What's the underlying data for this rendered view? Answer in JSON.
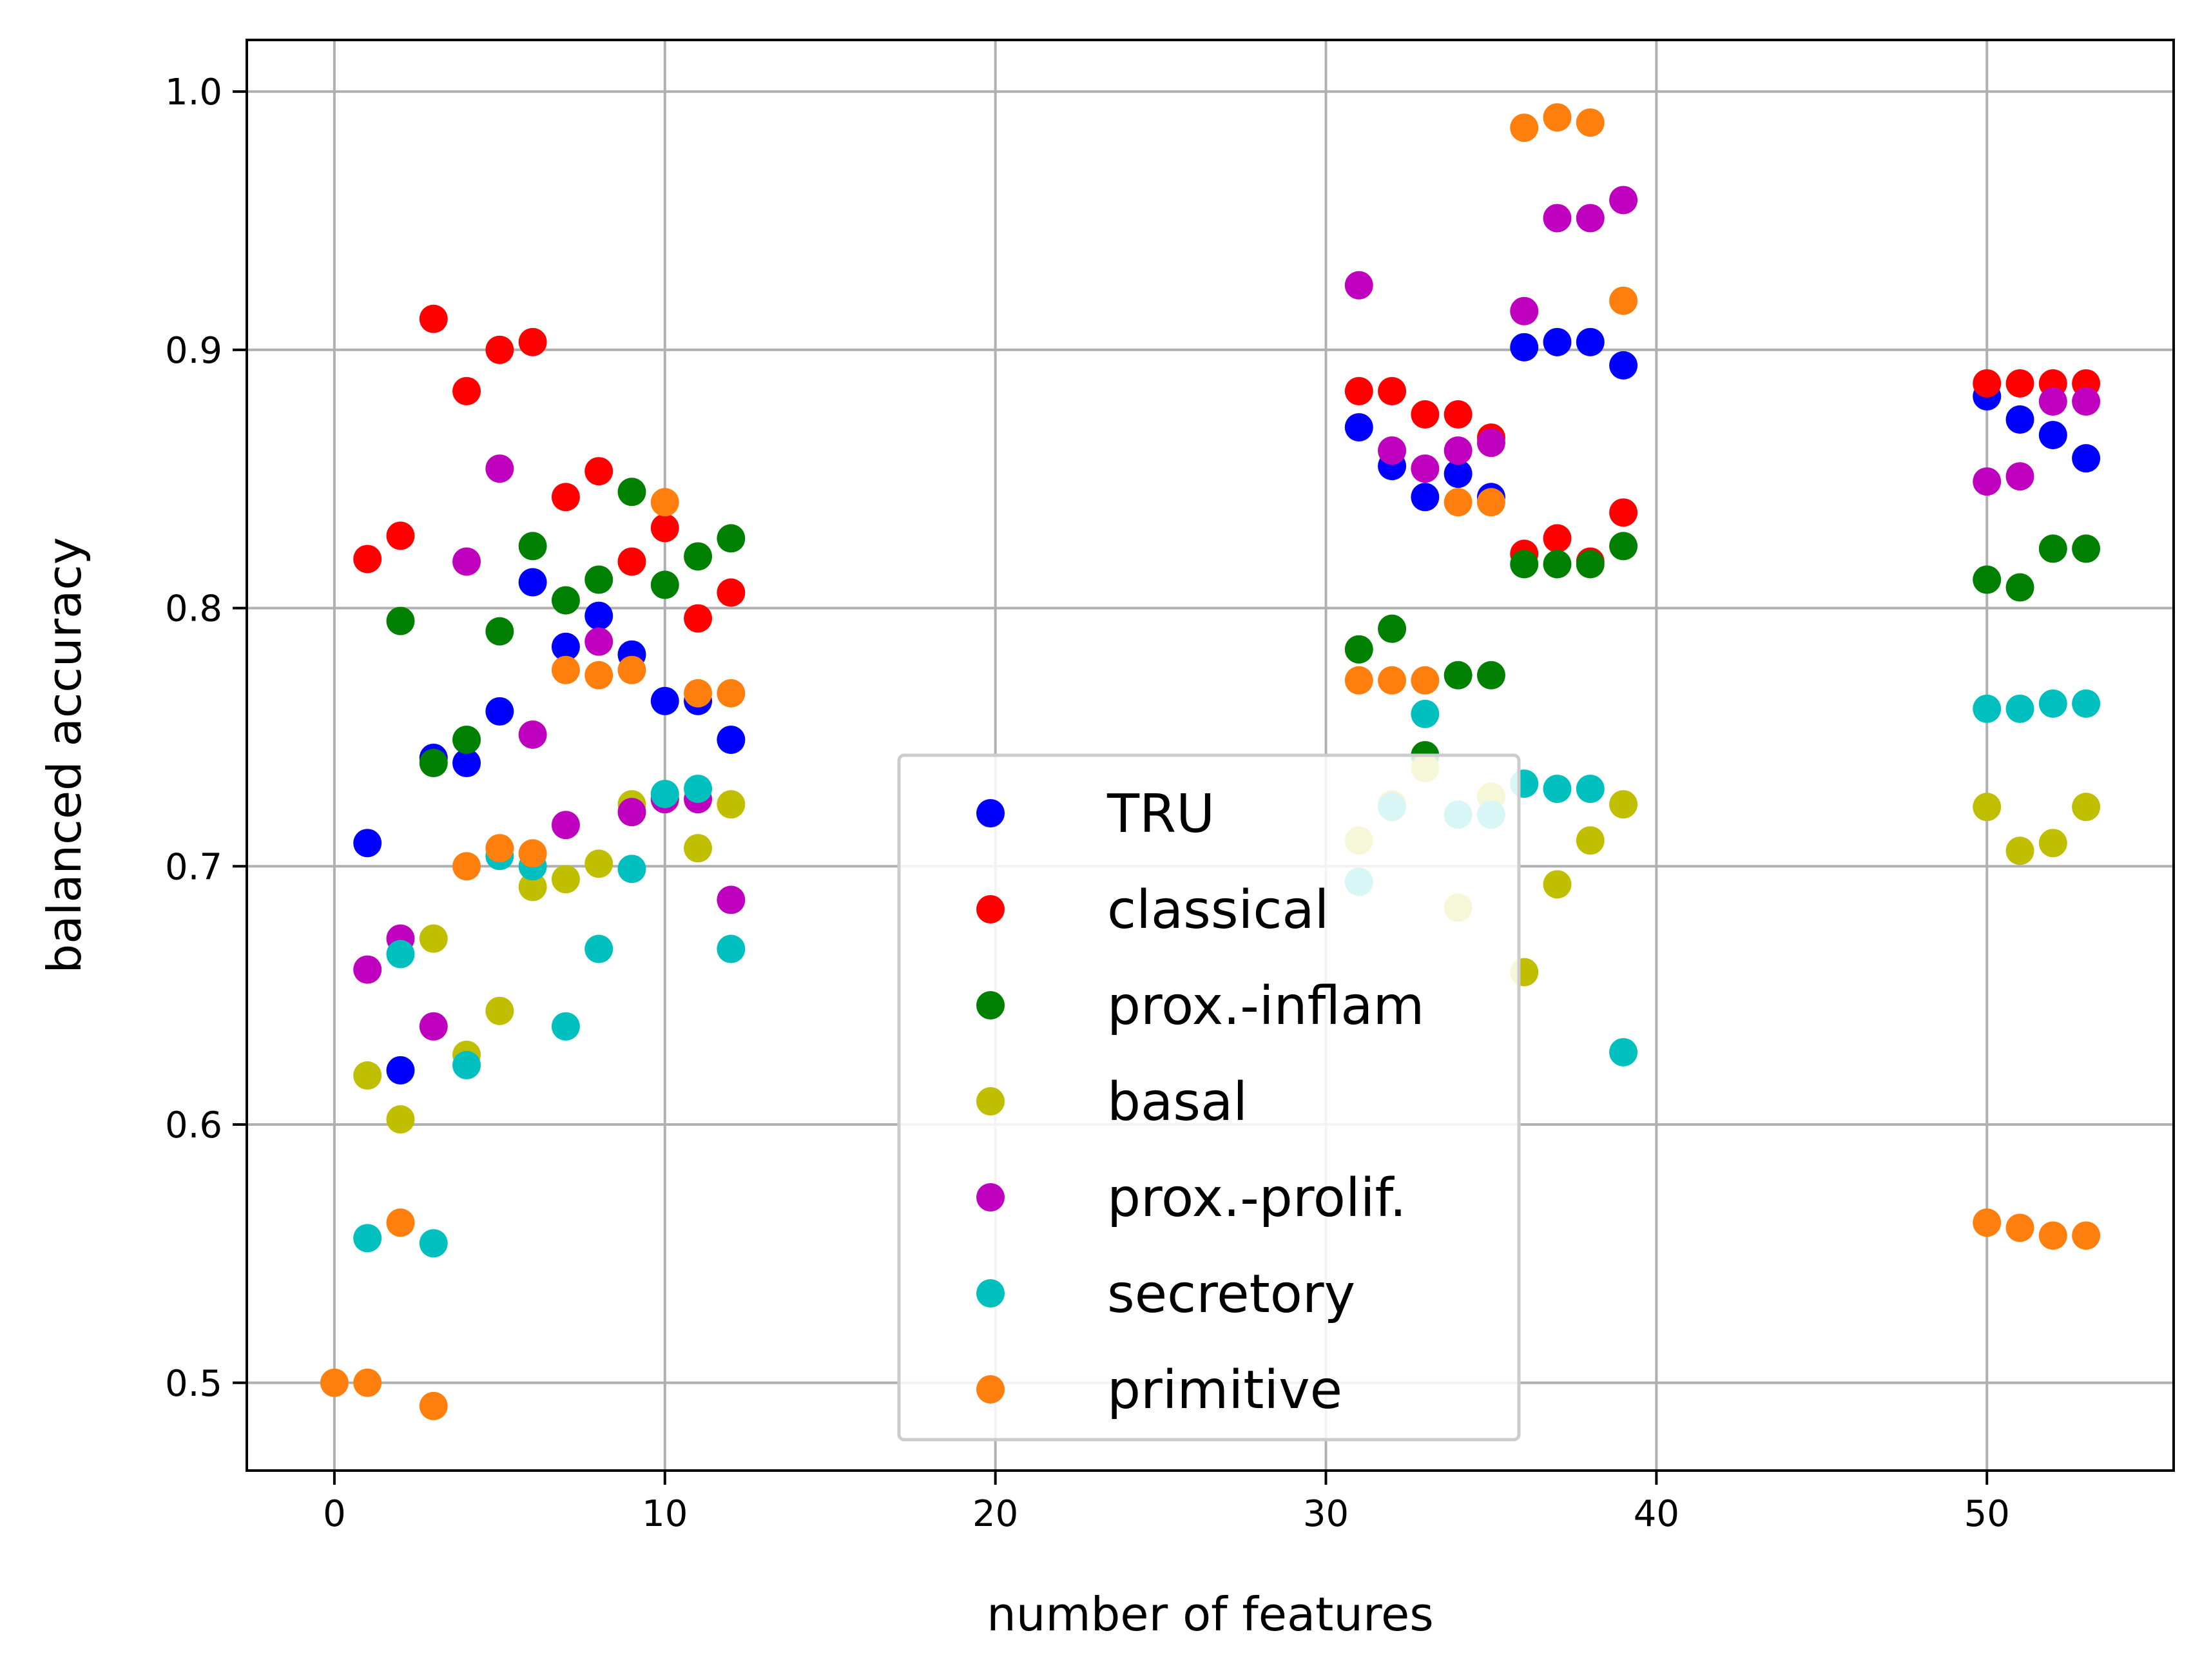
{
  "chart_data": {
    "type": "scatter",
    "title": "",
    "xlabel": "number of features",
    "ylabel": "balanced accuracy",
    "xlim": [
      -2.65,
      55.65
    ],
    "ylim": [
      0.466,
      1.02
    ],
    "xticks": [
      0,
      10,
      20,
      30,
      40,
      50
    ],
    "yticks": [
      0.5,
      0.6,
      0.7,
      0.8,
      0.9,
      1.0
    ],
    "xtick_labels": [
      "0",
      "10",
      "20",
      "30",
      "40",
      "50"
    ],
    "ytick_labels": [
      "0.5",
      "0.6",
      "0.7",
      "0.8",
      "0.9",
      "1.0"
    ],
    "grid": true,
    "legend_position": "lower center",
    "series": [
      {
        "name": "TRU",
        "color": "#0000ff",
        "points": [
          [
            1,
            0.709
          ],
          [
            2,
            0.621
          ],
          [
            3,
            0.742
          ],
          [
            4,
            0.74
          ],
          [
            5,
            0.76
          ],
          [
            6,
            0.81
          ],
          [
            7,
            0.785
          ],
          [
            8,
            0.797
          ],
          [
            9,
            0.782
          ],
          [
            10,
            0.764
          ],
          [
            11,
            0.764
          ],
          [
            12,
            0.749
          ],
          [
            31,
            0.87
          ],
          [
            32,
            0.855
          ],
          [
            33,
            0.843
          ],
          [
            34,
            0.852
          ],
          [
            35,
            0.843
          ],
          [
            36,
            0.901
          ],
          [
            37,
            0.903
          ],
          [
            38,
            0.903
          ],
          [
            39,
            0.894
          ],
          [
            50,
            0.882
          ],
          [
            51,
            0.873
          ],
          [
            52,
            0.867
          ],
          [
            53,
            0.858
          ]
        ]
      },
      {
        "name": "classical",
        "color": "#ff0000",
        "points": [
          [
            1,
            0.819
          ],
          [
            2,
            0.828
          ],
          [
            3,
            0.912
          ],
          [
            4,
            0.884
          ],
          [
            5,
            0.9
          ],
          [
            6,
            0.903
          ],
          [
            7,
            0.843
          ],
          [
            8,
            0.853
          ],
          [
            9,
            0.818
          ],
          [
            10,
            0.831
          ],
          [
            11,
            0.796
          ],
          [
            12,
            0.806
          ],
          [
            31,
            0.884
          ],
          [
            32,
            0.884
          ],
          [
            33,
            0.875
          ],
          [
            34,
            0.875
          ],
          [
            35,
            0.866
          ],
          [
            36,
            0.821
          ],
          [
            37,
            0.827
          ],
          [
            38,
            0.818
          ],
          [
            39,
            0.837
          ],
          [
            50,
            0.887
          ],
          [
            51,
            0.887
          ],
          [
            52,
            0.887
          ],
          [
            53,
            0.887
          ]
        ]
      },
      {
        "name": "prox.-inflam",
        "color": "#008000",
        "points": [
          [
            2,
            0.795
          ],
          [
            3,
            0.74
          ],
          [
            4,
            0.749
          ],
          [
            5,
            0.791
          ],
          [
            6,
            0.824
          ],
          [
            7,
            0.803
          ],
          [
            8,
            0.811
          ],
          [
            9,
            0.845
          ],
          [
            10,
            0.809
          ],
          [
            11,
            0.82
          ],
          [
            12,
            0.827
          ],
          [
            31,
            0.784
          ],
          [
            32,
            0.792
          ],
          [
            33,
            0.743
          ],
          [
            34,
            0.774
          ],
          [
            35,
            0.774
          ],
          [
            36,
            0.817
          ],
          [
            37,
            0.817
          ],
          [
            38,
            0.817
          ],
          [
            39,
            0.824
          ],
          [
            50,
            0.811
          ],
          [
            51,
            0.808
          ],
          [
            52,
            0.823
          ],
          [
            53,
            0.823
          ]
        ]
      },
      {
        "name": "basal",
        "color": "#bfbf00",
        "points": [
          [
            1,
            0.619
          ],
          [
            2,
            0.602
          ],
          [
            3,
            0.672
          ],
          [
            4,
            0.627
          ],
          [
            5,
            0.644
          ],
          [
            6,
            0.692
          ],
          [
            7,
            0.695
          ],
          [
            8,
            0.701
          ],
          [
            9,
            0.724
          ],
          [
            10,
            0.726
          ],
          [
            11,
            0.707
          ],
          [
            12,
            0.724
          ],
          [
            31,
            0.71
          ],
          [
            32,
            0.724
          ],
          [
            33,
            0.738
          ],
          [
            34,
            0.684
          ],
          [
            35,
            0.727
          ],
          [
            36,
            0.659
          ],
          [
            37,
            0.693
          ],
          [
            38,
            0.71
          ],
          [
            39,
            0.724
          ],
          [
            50,
            0.723
          ],
          [
            51,
            0.706
          ],
          [
            52,
            0.709
          ],
          [
            53,
            0.723
          ]
        ]
      },
      {
        "name": "prox.-prolif.",
        "color": "#bf00bf",
        "points": [
          [
            1,
            0.66
          ],
          [
            2,
            0.672
          ],
          [
            3,
            0.638
          ],
          [
            4,
            0.818
          ],
          [
            5,
            0.854
          ],
          [
            6,
            0.751
          ],
          [
            7,
            0.716
          ],
          [
            8,
            0.787
          ],
          [
            9,
            0.721
          ],
          [
            10,
            0.726
          ],
          [
            11,
            0.726
          ],
          [
            12,
            0.687
          ],
          [
            31,
            0.925
          ],
          [
            32,
            0.861
          ],
          [
            33,
            0.854
          ],
          [
            34,
            0.861
          ],
          [
            35,
            0.864
          ],
          [
            36,
            0.915
          ],
          [
            37,
            0.951
          ],
          [
            38,
            0.951
          ],
          [
            39,
            0.958
          ],
          [
            50,
            0.849
          ],
          [
            51,
            0.851
          ],
          [
            52,
            0.88
          ],
          [
            53,
            0.88
          ]
        ]
      },
      {
        "name": "secretory",
        "color": "#00bfbf",
        "points": [
          [
            1,
            0.556
          ],
          [
            2,
            0.666
          ],
          [
            3,
            0.554
          ],
          [
            4,
            0.623
          ],
          [
            5,
            0.704
          ],
          [
            6,
            0.7
          ],
          [
            7,
            0.638
          ],
          [
            8,
            0.668
          ],
          [
            9,
            0.699
          ],
          [
            10,
            0.728
          ],
          [
            11,
            0.73
          ],
          [
            12,
            0.668
          ],
          [
            31,
            0.694
          ],
          [
            32,
            0.723
          ],
          [
            33,
            0.759
          ],
          [
            34,
            0.72
          ],
          [
            35,
            0.72
          ],
          [
            36,
            0.732
          ],
          [
            37,
            0.73
          ],
          [
            38,
            0.73
          ],
          [
            39,
            0.628
          ],
          [
            50,
            0.761
          ],
          [
            51,
            0.761
          ],
          [
            52,
            0.763
          ],
          [
            53,
            0.763
          ]
        ]
      },
      {
        "name": "primitive",
        "color": "#ff7f0e",
        "points": [
          [
            0,
            0.5
          ],
          [
            1,
            0.5
          ],
          [
            2,
            0.562
          ],
          [
            3,
            0.491
          ],
          [
            4,
            0.7
          ],
          [
            5,
            0.707
          ],
          [
            6,
            0.705
          ],
          [
            7,
            0.776
          ],
          [
            8,
            0.774
          ],
          [
            9,
            0.776
          ],
          [
            10,
            0.841
          ],
          [
            11,
            0.767
          ],
          [
            12,
            0.767
          ],
          [
            31,
            0.772
          ],
          [
            32,
            0.772
          ],
          [
            33,
            0.772
          ],
          [
            34,
            0.841
          ],
          [
            35,
            0.841
          ],
          [
            36,
            0.986
          ],
          [
            37,
            0.99
          ],
          [
            38,
            0.988
          ],
          [
            39,
            0.919
          ],
          [
            50,
            0.562
          ],
          [
            51,
            0.56
          ],
          [
            52,
            0.557
          ],
          [
            53,
            0.557
          ]
        ]
      }
    ]
  }
}
